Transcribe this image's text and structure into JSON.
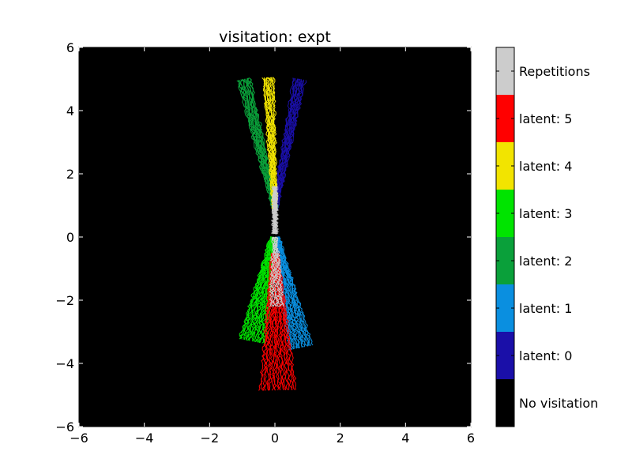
{
  "chart_data": {
    "type": "heatmap",
    "title": "visitation: expt",
    "xlabel": "",
    "ylabel": "",
    "xlim": [
      -6,
      6
    ],
    "ylim": [
      -6,
      6
    ],
    "xticks": [
      "−6",
      "−4",
      "−2",
      "0",
      "2",
      "4",
      "6"
    ],
    "yticks": [
      "−6",
      "−4",
      "−2",
      "0",
      "2",
      "4",
      "6"
    ],
    "background_color": "#000000",
    "categories": [
      {
        "label": "No visitation",
        "color": "#000000"
      },
      {
        "label": "latent: 0",
        "color": "#1a0fa8"
      },
      {
        "label": "latent: 1",
        "color": "#0a8fe0"
      },
      {
        "label": "latent: 2",
        "color": "#0aa03a"
      },
      {
        "label": "latent: 3",
        "color": "#00e400"
      },
      {
        "label": "latent: 4",
        "color": "#f2e400"
      },
      {
        "label": "latent: 5",
        "color": "#ff0000"
      },
      {
        "label": "Repetitions",
        "color": "#cccccc"
      }
    ],
    "bundles": [
      {
        "category": "latent: 0",
        "start": [
          0.0,
          0.9
        ],
        "end": [
          0.75,
          5.0
        ],
        "spread_start": 0.08,
        "spread_end": 0.18,
        "count": 14
      },
      {
        "category": "latent: 2",
        "start": [
          0.0,
          0.9
        ],
        "end": [
          -0.95,
          5.0
        ],
        "spread_start": 0.08,
        "spread_end": 0.2,
        "count": 16
      },
      {
        "category": "latent: 4",
        "start": [
          0.0,
          0.9
        ],
        "end": [
          -0.2,
          5.05
        ],
        "spread_start": 0.06,
        "spread_end": 0.16,
        "count": 14
      },
      {
        "category": "Repetitions",
        "start": [
          0.0,
          0.1
        ],
        "end": [
          0.0,
          1.6
        ],
        "spread_start": 0.06,
        "spread_end": 0.05,
        "count": 10
      },
      {
        "category": "latent: 1",
        "start": [
          0.05,
          0.0
        ],
        "end": [
          0.8,
          -3.5
        ],
        "spread_start": 0.08,
        "spread_end": 0.35,
        "count": 20
      },
      {
        "category": "latent: 3",
        "start": [
          -0.05,
          0.0
        ],
        "end": [
          -0.7,
          -3.3
        ],
        "spread_start": 0.08,
        "spread_end": 0.4,
        "count": 22
      },
      {
        "category": "latent: 5",
        "start": [
          0.0,
          -0.5
        ],
        "end": [
          0.1,
          -4.85
        ],
        "spread_start": 0.1,
        "spread_end": 0.55,
        "count": 22
      },
      {
        "category": "Repetitions",
        "start": [
          0.0,
          0.0
        ],
        "end": [
          0.05,
          -2.2
        ],
        "spread_start": 0.05,
        "spread_end": 0.2,
        "count": 8
      }
    ]
  }
}
